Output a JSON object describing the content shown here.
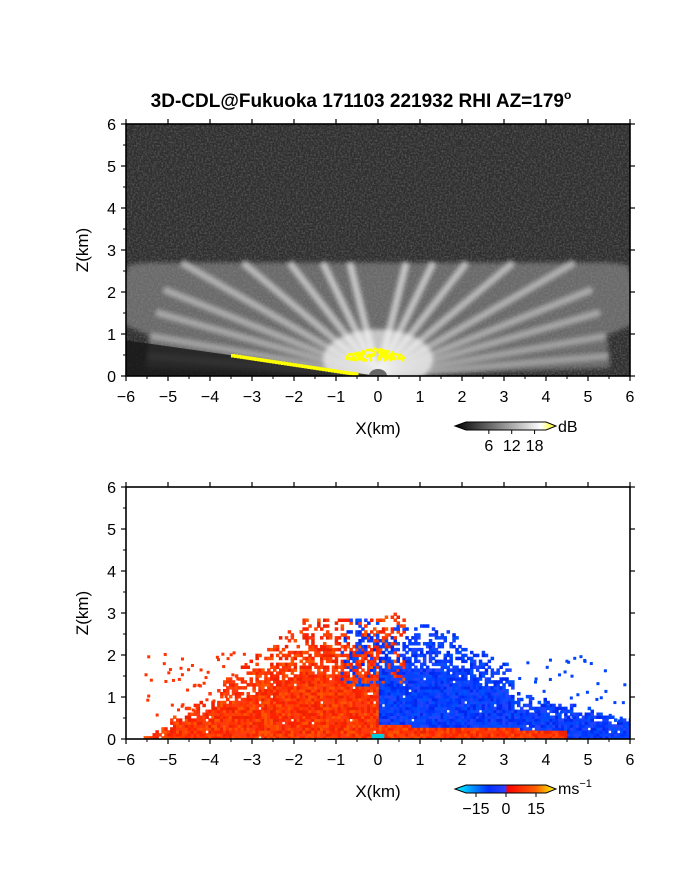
{
  "title": "3D-CDL@Fukuoka 171103 221932 RHI AZ=179",
  "title_superscript": "o",
  "chart_data": [
    {
      "type": "heatmap",
      "panel": "reflectivity (backscatter)",
      "xlabel": "X(km)",
      "ylabel": "Z(km)",
      "xlim": [
        -6,
        6
      ],
      "ylim": [
        0,
        6
      ],
      "xticks": [
        "-6",
        "-5",
        "-4",
        "-3",
        "-2",
        "-1",
        "0",
        "1",
        "2",
        "3",
        "4",
        "5",
        "6"
      ],
      "yticks": [
        "0",
        "1",
        "2",
        "3",
        "4",
        "5",
        "6"
      ],
      "colorbar": {
        "unit": "dB",
        "ticks": [
          "6",
          "12",
          "18"
        ],
        "tick_values": [
          6,
          12,
          18
        ],
        "range": [
          0,
          21
        ],
        "colors": [
          "#000000",
          "#ffffff",
          "#ffff00"
        ]
      },
      "background_level_db": 3,
      "echo_top_km": 2.7,
      "beam_directions_deg": [
        5,
        10,
        16,
        22,
        30,
        40,
        52,
        64,
        76,
        90,
        104,
        116,
        128,
        140,
        150,
        158,
        164,
        170,
        175
      ],
      "strong_echo_region": {
        "x_range_km": [
          -0.8,
          0.6
        ],
        "z_range_km": [
          0.4,
          0.7
        ],
        "value_db": 20
      },
      "ground_strip": {
        "x_range_km": [
          -3.5,
          -0.5
        ],
        "z_range_km": [
          0.5,
          0.05
        ],
        "value_db": 20
      }
    },
    {
      "type": "heatmap",
      "panel": "Doppler velocity",
      "xlabel": "X(km)",
      "ylabel": "Z(km)",
      "xlim": [
        -6,
        6
      ],
      "ylim": [
        0,
        6
      ],
      "xticks": [
        "-6",
        "-5",
        "-4",
        "-3",
        "-2",
        "-1",
        "0",
        "1",
        "2",
        "3",
        "4",
        "5",
        "6"
      ],
      "yticks": [
        "0",
        "1",
        "2",
        "3",
        "4",
        "5",
        "6"
      ],
      "colorbar": {
        "unit": "ms",
        "unit_exponent": "−1",
        "ticks": [
          "−15",
          "0",
          "15"
        ],
        "tick_values": [
          -15,
          0,
          15
        ],
        "range": [
          -20,
          20
        ],
        "colors": [
          "#00ffff",
          "#0030ff",
          "#ff0000",
          "#ffff00"
        ]
      },
      "approaching_side": {
        "x_range_km": [
          -5.5,
          0
        ],
        "z_max_km": 2.8,
        "value_ms": 8,
        "color": "#ff3300"
      },
      "receding_side": {
        "x_range_km": [
          0,
          6.0
        ],
        "z_max_km": 2.6,
        "value_ms": -9,
        "color": "#0044ff"
      },
      "near_ground_outflow": {
        "x_range_km": [
          0,
          4.5
        ],
        "z_range_km": [
          0,
          0.3
        ],
        "value_ms": 8,
        "color": "#ff2200"
      },
      "origin_spot_color": "#00ccdd"
    }
  ]
}
